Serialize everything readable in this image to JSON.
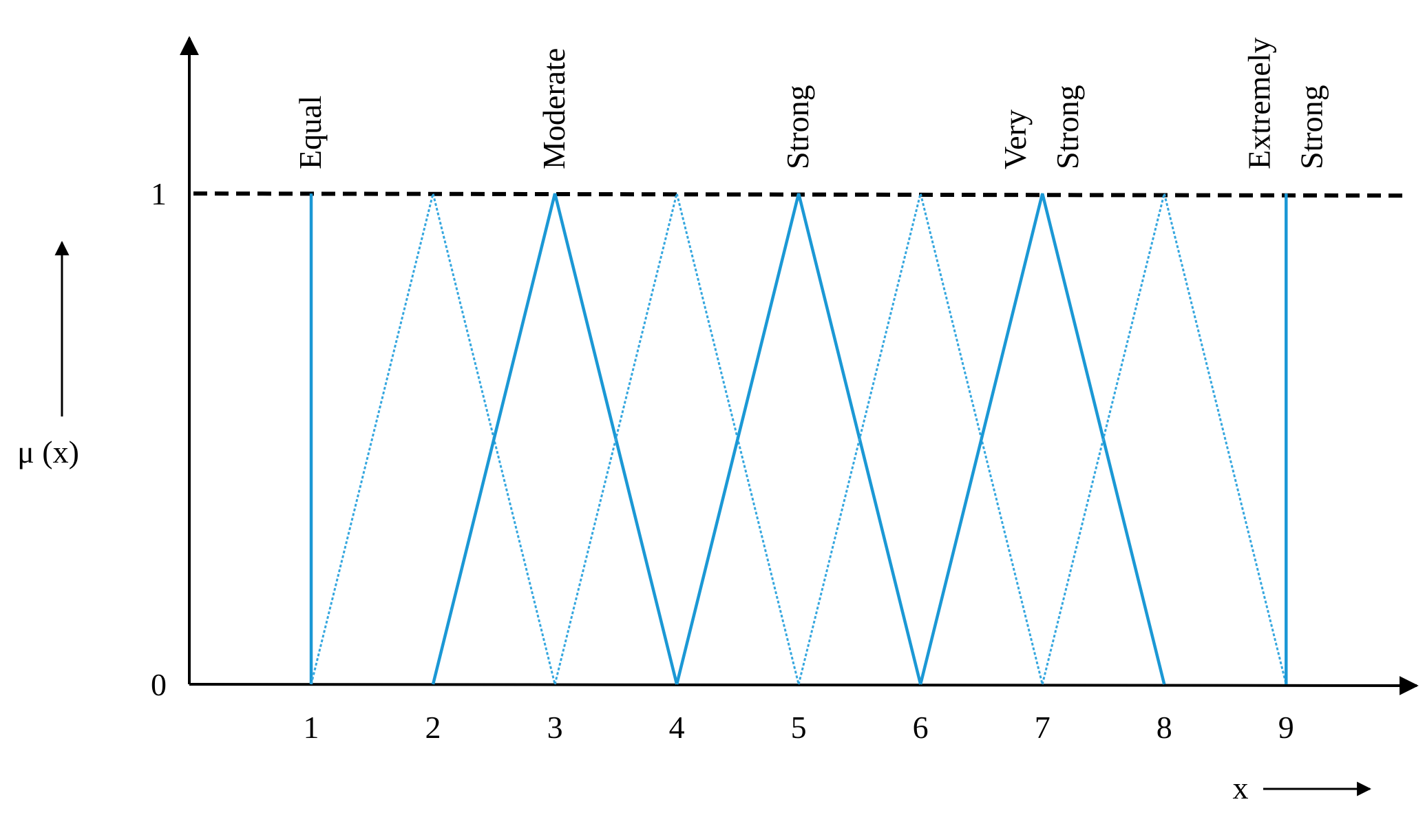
{
  "chart_data": {
    "type": "line",
    "x_label": "x",
    "y_label": "μ (x)",
    "xlim": [
      0,
      10.1
    ],
    "ylim": [
      0,
      1.32
    ],
    "xticks": [
      1,
      2,
      3,
      4,
      5,
      6,
      7,
      8,
      9
    ],
    "yticks": [
      0,
      1
    ],
    "reference_line": 1,
    "annotations": [
      {
        "x": 1,
        "lines": [
          "Equal"
        ]
      },
      {
        "x": 3,
        "lines": [
          "Moderate"
        ]
      },
      {
        "x": 5,
        "lines": [
          "Strong"
        ]
      },
      {
        "x": 7,
        "lines": [
          "Very",
          "Strong"
        ]
      },
      {
        "x": 9,
        "lines": [
          "Extremely",
          "Strong"
        ]
      }
    ],
    "series": [
      {
        "style": "solid",
        "color": "#1b98d5",
        "x": [
          1,
          1
        ],
        "values": [
          1,
          0
        ]
      },
      {
        "style": "dotted",
        "color": "#34a6de",
        "x": [
          1,
          2,
          3
        ],
        "values": [
          0,
          1,
          0
        ]
      },
      {
        "style": "solid",
        "color": "#1b98d5",
        "x": [
          2,
          3,
          4
        ],
        "values": [
          0,
          1,
          0
        ]
      },
      {
        "style": "dotted",
        "color": "#34a6de",
        "x": [
          3,
          4,
          5
        ],
        "values": [
          0,
          1,
          0
        ]
      },
      {
        "style": "solid",
        "color": "#1b98d5",
        "x": [
          4,
          5,
          6
        ],
        "values": [
          0,
          1,
          0
        ]
      },
      {
        "style": "dotted",
        "color": "#34a6de",
        "x": [
          5,
          6,
          7
        ],
        "values": [
          0,
          1,
          0
        ]
      },
      {
        "style": "solid",
        "color": "#1b98d5",
        "x": [
          6,
          7,
          8
        ],
        "values": [
          0,
          1,
          0
        ]
      },
      {
        "style": "dotted",
        "color": "#34a6de",
        "x": [
          7,
          8,
          9
        ],
        "values": [
          0,
          1,
          0
        ]
      },
      {
        "style": "solid",
        "color": "#1b98d5",
        "x": [
          9,
          9
        ],
        "values": [
          0,
          1
        ]
      }
    ]
  }
}
